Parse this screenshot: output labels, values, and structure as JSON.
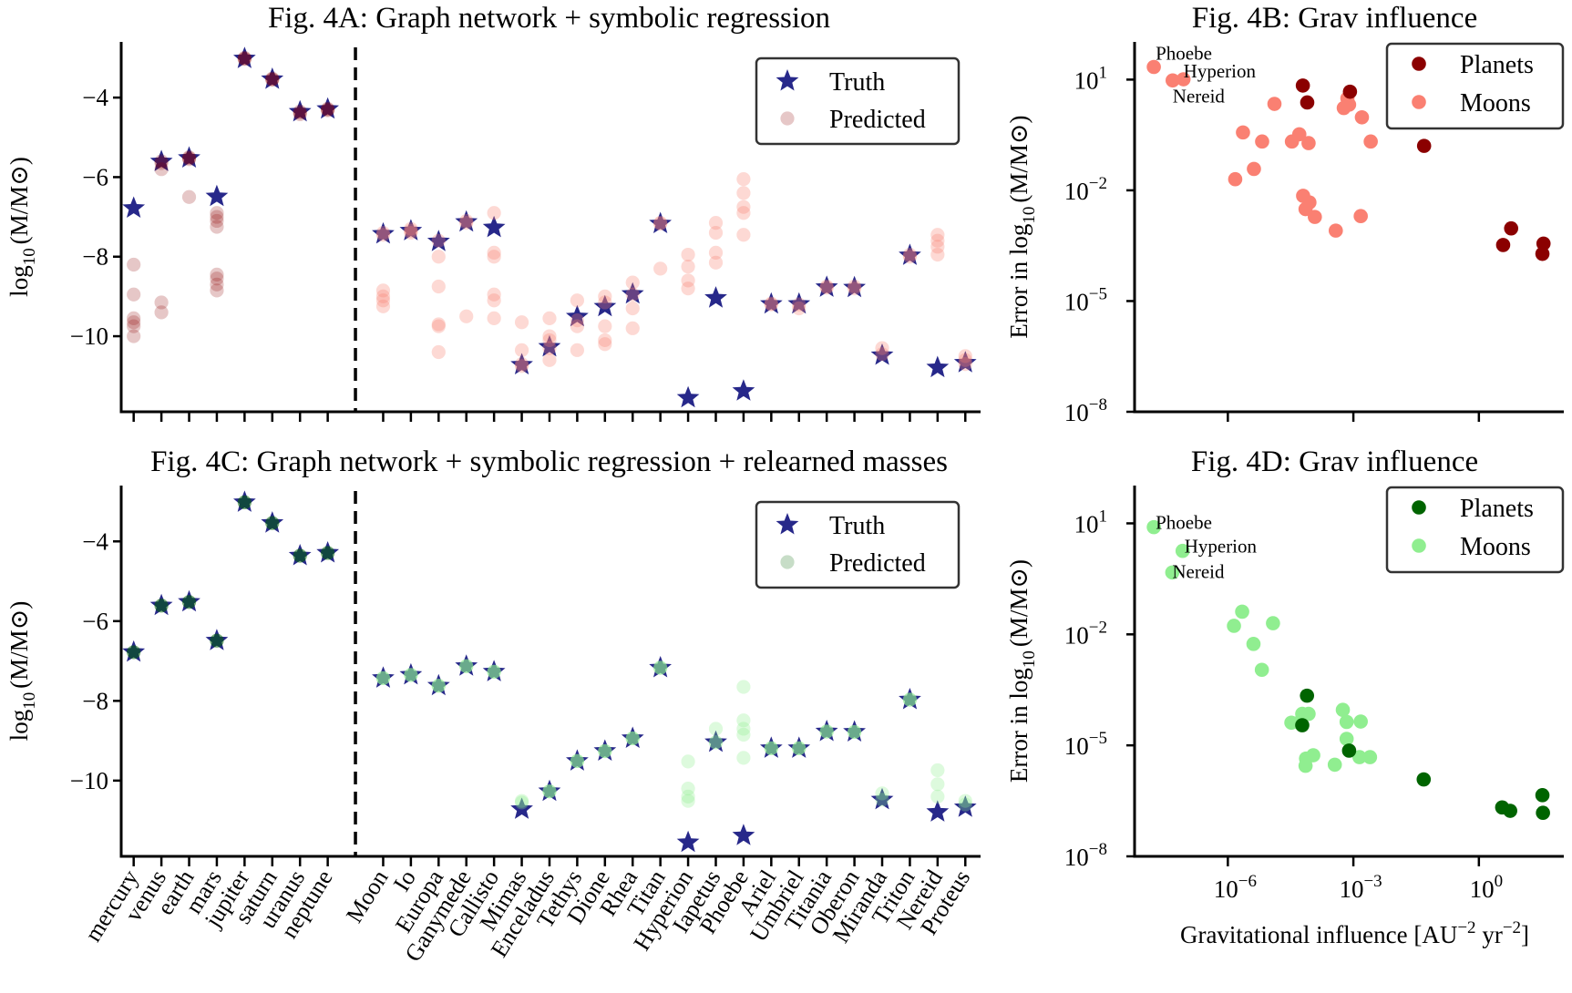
{
  "chart_data": [
    {
      "panel": "4A",
      "type": "scatter",
      "title": "Fig. 4A: Graph network + symbolic regression",
      "ylabel": {
        "prefix": "log",
        "sub": "10",
        "suffix": "(M/M⊙)"
      },
      "ylim": [
        -11.9,
        -2.6
      ],
      "yticks": [
        -10,
        -8,
        -6,
        -4
      ],
      "ytick_labels": [
        "−10",
        "−8",
        "−6",
        "−4"
      ],
      "legend": {
        "position": "top-right",
        "items": [
          "Truth",
          "Predicted"
        ]
      },
      "colors": {
        "truth": "#27288a",
        "planet_pred": "#8b0000",
        "moon_pred": "#fa8072"
      },
      "truth": [
        -6.78,
        -5.61,
        -5.52,
        -6.49,
        -3.02,
        -3.54,
        -4.36,
        -4.29,
        -7.43,
        -7.35,
        -7.62,
        -7.13,
        -7.27,
        -10.72,
        -10.27,
        -9.51,
        -9.26,
        -8.94,
        -7.17,
        -11.55,
        -9.04,
        -11.38,
        -9.19,
        -9.19,
        -8.77,
        -8.78,
        -10.48,
        -7.97,
        -10.79,
        -10.67
      ],
      "predicted": [
        [
          -8.2,
          -8.95,
          -9.55,
          -9.65,
          -9.75,
          -10.0
        ],
        [
          -5.6,
          -5.65,
          -5.8,
          -9.15,
          -9.4
        ],
        [
          -5.5,
          -5.52,
          -5.55,
          -6.5
        ],
        [
          -6.9,
          -7.0,
          -7.1,
          -7.25,
          -8.45,
          -8.55,
          -8.7,
          -8.85
        ],
        [
          -3.0,
          -3.02,
          -3.03
        ],
        [
          -3.52,
          -3.54,
          -3.55
        ],
        [
          -4.35,
          -4.38,
          -4.42
        ],
        [
          -4.28,
          -4.3,
          -4.32
        ],
        [
          -7.4,
          -7.45,
          -8.85,
          -9.0,
          -9.1,
          -9.25
        ],
        [
          -7.3,
          -7.35,
          -7.4
        ],
        [
          -7.6,
          -8.0,
          -8.75,
          -9.7,
          -9.75,
          -10.4
        ],
        [
          -7.1,
          -7.15,
          -9.5
        ],
        [
          -6.9,
          -7.9,
          -8.0,
          -8.95,
          -9.1,
          -9.55
        ],
        [
          -9.65,
          -10.35,
          -10.7,
          -10.75
        ],
        [
          -9.55,
          -10.0,
          -10.1,
          -10.3,
          -10.6
        ],
        [
          -9.1,
          -9.6,
          -9.75,
          -10.35
        ],
        [
          -9.0,
          -9.15,
          -9.75,
          -10.1,
          -10.2
        ],
        [
          -8.65,
          -8.95,
          -9.3,
          -9.8
        ],
        [
          -7.15,
          -7.17,
          -8.3
        ],
        [
          -7.95,
          -8.25,
          -8.6,
          -8.8
        ],
        [
          -7.15,
          -7.4,
          -7.9,
          -8.15
        ],
        [
          -6.05,
          -6.4,
          -6.75,
          -6.9,
          -7.45
        ],
        [
          -9.18,
          -9.2
        ],
        [
          -9.2,
          -9.3
        ],
        [
          -8.75,
          -8.78
        ],
        [
          -8.75,
          -8.8
        ],
        [
          -10.3,
          -10.45
        ],
        [
          -7.95,
          -8.0
        ],
        [
          -7.45,
          -7.6,
          -7.75,
          -7.95
        ],
        [
          -10.5,
          -10.6,
          -10.7
        ]
      ]
    },
    {
      "panel": "4B",
      "type": "scatter",
      "title": "Fig. 4B: Grav influence",
      "ylabel": {
        "prefix": "Error in log",
        "sub": "10",
        "suffix": "(M/M⊙)"
      },
      "xscale": "log",
      "yscale": "log",
      "xlim": [
        5.9e-09,
        107
      ],
      "ylim": [
        1e-08,
        105
      ],
      "xticks": [
        1e-06,
        0.001,
        1
      ],
      "yticks": [
        1e-08,
        1e-05,
        0.01,
        10
      ],
      "ytick_labels": [
        {
          "base": "10",
          "exp": "−8"
        },
        {
          "base": "10",
          "exp": "−5"
        },
        {
          "base": "10",
          "exp": "−2"
        },
        {
          "base": "10",
          "exp": "1"
        }
      ],
      "legend": {
        "position": "top-right"
      },
      "series": [
        {
          "name": "Planets",
          "color": "#8b0000",
          "points": [
            [
              6.2e-05,
              6.9
            ],
            [
              7.9e-05,
              2.4
            ],
            [
              0.00083,
              4.7
            ],
            [
              0.049,
              0.16
            ],
            [
              5.9,
              0.00093
            ],
            [
              3.8,
              0.00033
            ],
            [
              35,
              0.00036
            ],
            [
              33,
              0.00019
            ]
          ]
        },
        {
          "name": "Moons",
          "color": "#fa8072",
          "points": [
            [
              1.7e-08,
              22
            ],
            [
              4.8e-08,
              9.5
            ],
            [
              8.7e-08,
              10.2
            ],
            [
              1.3e-05,
              2.2
            ],
            [
              2.3e-06,
              0.37
            ],
            [
              6.6e-06,
              0.21
            ],
            [
              3.4e-05,
              0.21
            ],
            [
              5.1e-05,
              0.33
            ],
            [
              8.5e-05,
              0.19
            ],
            [
              0.00059,
              1.7
            ],
            [
              0.00072,
              3.1
            ],
            [
              0.00079,
              2.1
            ],
            [
              0.0016,
              0.95
            ],
            [
              0.0026,
              0.21
            ],
            [
              1.5e-06,
              0.02
            ],
            [
              4.2e-06,
              0.038
            ],
            [
              6.3e-05,
              0.0071
            ],
            [
              8.9e-05,
              0.0047
            ],
            [
              7.2e-05,
              0.0031
            ],
            [
              0.00012,
              0.0019
            ],
            [
              0.00038,
              0.00081
            ],
            [
              0.0015,
              0.002
            ]
          ]
        }
      ],
      "annotations": [
        {
          "text": "Phoebe",
          "x": 1.7e-08,
          "y": 22
        },
        {
          "text": "Hyperion",
          "x": 8.7e-08,
          "y": 10.2
        },
        {
          "text": "Nereid",
          "x": 4.8e-08,
          "y": 9.5
        }
      ]
    },
    {
      "panel": "4C",
      "type": "scatter",
      "title": "Fig. 4C: Graph network + symbolic regression + relearned masses",
      "ylabel": {
        "prefix": "log",
        "sub": "10",
        "suffix": "(M/M⊙)"
      },
      "ylim": [
        -11.9,
        -2.6
      ],
      "yticks": [
        -10,
        -8,
        -6,
        -4
      ],
      "ytick_labels": [
        "−10",
        "−8",
        "−6",
        "−4"
      ],
      "categories": [
        "mercury",
        "venus",
        "earth",
        "mars",
        "jupiter",
        "saturn",
        "uranus",
        "neptune",
        "Moon",
        "Io",
        "Europa",
        "Ganymede",
        "Callisto",
        "Mimas",
        "Enceladus",
        "Tethys",
        "Dione",
        "Rhea",
        "Titan",
        "Hyperion",
        "Iapetus",
        "Phoebe",
        "Ariel",
        "Umbriel",
        "Titania",
        "Oberon",
        "Miranda",
        "Triton",
        "Nereid",
        "Proteus"
      ],
      "legend": {
        "position": "top-right",
        "items": [
          "Truth",
          "Predicted"
        ]
      },
      "colors": {
        "truth": "#27288a",
        "planet_pred": "#006400",
        "moon_pred": "#90ee90"
      },
      "truth": [
        -6.78,
        -5.61,
        -5.52,
        -6.49,
        -3.02,
        -3.54,
        -4.36,
        -4.29,
        -7.43,
        -7.35,
        -7.62,
        -7.13,
        -7.27,
        -10.72,
        -10.27,
        -9.51,
        -9.26,
        -8.94,
        -7.17,
        -11.55,
        -9.04,
        -11.38,
        -9.19,
        -9.19,
        -8.77,
        -8.78,
        -10.48,
        -7.97,
        -10.79,
        -10.67
      ],
      "predicted": [
        [
          -6.78,
          -6.78,
          -6.78
        ],
        [
          -5.61,
          -5.61,
          -5.61
        ],
        [
          -5.52,
          -5.52,
          -5.52
        ],
        [
          -6.49,
          -6.49,
          -6.49
        ],
        [
          -3.02,
          -3.02,
          -3.02
        ],
        [
          -3.54,
          -3.54,
          -3.54
        ],
        [
          -4.36,
          -4.36,
          -4.36
        ],
        [
          -4.29,
          -4.29,
          -4.29
        ],
        [
          -7.43,
          -7.43,
          -7.43
        ],
        [
          -7.35,
          -7.35,
          -7.35
        ],
        [
          -7.62,
          -7.62,
          -7.62
        ],
        [
          -7.13,
          -7.13,
          -7.13
        ],
        [
          -7.27,
          -7.27,
          -7.27
        ],
        [
          -10.51,
          -10.55
        ],
        [
          -10.27,
          -10.27,
          -10.27
        ],
        [
          -9.51,
          -9.51,
          -9.51
        ],
        [
          -9.26,
          -9.26,
          -9.26
        ],
        [
          -8.94,
          -8.94,
          -8.94
        ],
        [
          -7.17,
          -7.17,
          -7.17
        ],
        [
          -9.52,
          -10.2,
          -10.4,
          -10.51
        ],
        [
          -8.7,
          -9.04,
          -9.04
        ],
        [
          -7.65,
          -8.49,
          -8.7,
          -8.85,
          -9.43
        ],
        [
          -9.19,
          -9.19,
          -9.19
        ],
        [
          -9.19,
          -9.19,
          -9.19
        ],
        [
          -8.77,
          -8.77,
          -8.77
        ],
        [
          -8.78,
          -8.78,
          -8.78
        ],
        [
          -10.32,
          -10.48
        ],
        [
          -7.97,
          -7.97,
          -7.97
        ],
        [
          -9.74,
          -10.09,
          -10.4
        ],
        [
          -10.51,
          -10.6
        ]
      ]
    },
    {
      "panel": "4D",
      "type": "scatter",
      "title": "Fig. 4D: Grav influence",
      "ylabel": {
        "prefix": "Error in log",
        "sub": "10",
        "suffix": "(M/M⊙)"
      },
      "xlabel": [
        "Gravitational influence [AU",
        "−2",
        " yr",
        "−2",
        "]"
      ],
      "xscale": "log",
      "yscale": "log",
      "xlim": [
        5.9e-09,
        107
      ],
      "ylim": [
        1e-08,
        105
      ],
      "xticks": [
        1e-06,
        0.001,
        1
      ],
      "xtick_labels": [
        {
          "base": "10",
          "exp": "−6"
        },
        {
          "base": "10",
          "exp": "−3"
        },
        {
          "base": "10",
          "exp": "0"
        }
      ],
      "yticks": [
        1e-08,
        1e-05,
        0.01,
        10
      ],
      "ytick_labels": [
        {
          "base": "10",
          "exp": "−8"
        },
        {
          "base": "10",
          "exp": "−5"
        },
        {
          "base": "10",
          "exp": "−2"
        },
        {
          "base": "10",
          "exp": "1"
        }
      ],
      "legend": {
        "position": "top-right"
      },
      "series": [
        {
          "name": "Planets",
          "color": "#006400",
          "points": [
            [
              7.8e-05,
              0.00022
            ],
            [
              6e-05,
              3.5e-05
            ],
            [
              0.00079,
              7.2e-06
            ],
            [
              0.048,
              1.2e-06
            ],
            [
              3.6,
              2.1e-07
            ],
            [
              5.6,
              1.7e-07
            ],
            [
              33,
              4.5e-07
            ],
            [
              34,
              1.5e-07
            ]
          ]
        },
        {
          "name": "Moons",
          "color": "#90ee90",
          "points": [
            [
              1.7e-08,
              7.9
            ],
            [
              8.3e-08,
              1.8
            ],
            [
              4.7e-08,
              0.47
            ],
            [
              2.2e-06,
              0.041
            ],
            [
              1.4e-06,
              0.017
            ],
            [
              1.2e-05,
              0.02
            ],
            [
              4.1e-06,
              0.0055
            ],
            [
              6.5e-06,
              0.0011
            ],
            [
              3.3e-05,
              4.1e-05
            ],
            [
              5e-05,
              4.1e-05
            ],
            [
              6e-05,
              7.1e-05
            ],
            [
              8.5e-05,
              7.1e-05
            ],
            [
              0.00056,
              9.1e-05
            ],
            [
              0.00069,
              4.3e-05
            ],
            [
              0.0015,
              4.4e-05
            ],
            [
              0.00069,
              1.5e-05
            ],
            [
              7.4e-05,
              4.4e-06
            ],
            [
              0.00011,
              5.4e-06
            ],
            [
              7.2e-05,
              2.8e-06
            ],
            [
              0.00036,
              3e-06
            ],
            [
              0.0014,
              4.8e-06
            ],
            [
              0.0025,
              4.8e-06
            ]
          ]
        }
      ],
      "annotations": [
        {
          "text": "Phoebe",
          "x": 1.7e-08,
          "y": 7.9
        },
        {
          "text": "Hyperion",
          "x": 8.3e-08,
          "y": 1.8
        },
        {
          "text": "Nereid",
          "x": 4.7e-08,
          "y": 0.47
        }
      ]
    }
  ]
}
